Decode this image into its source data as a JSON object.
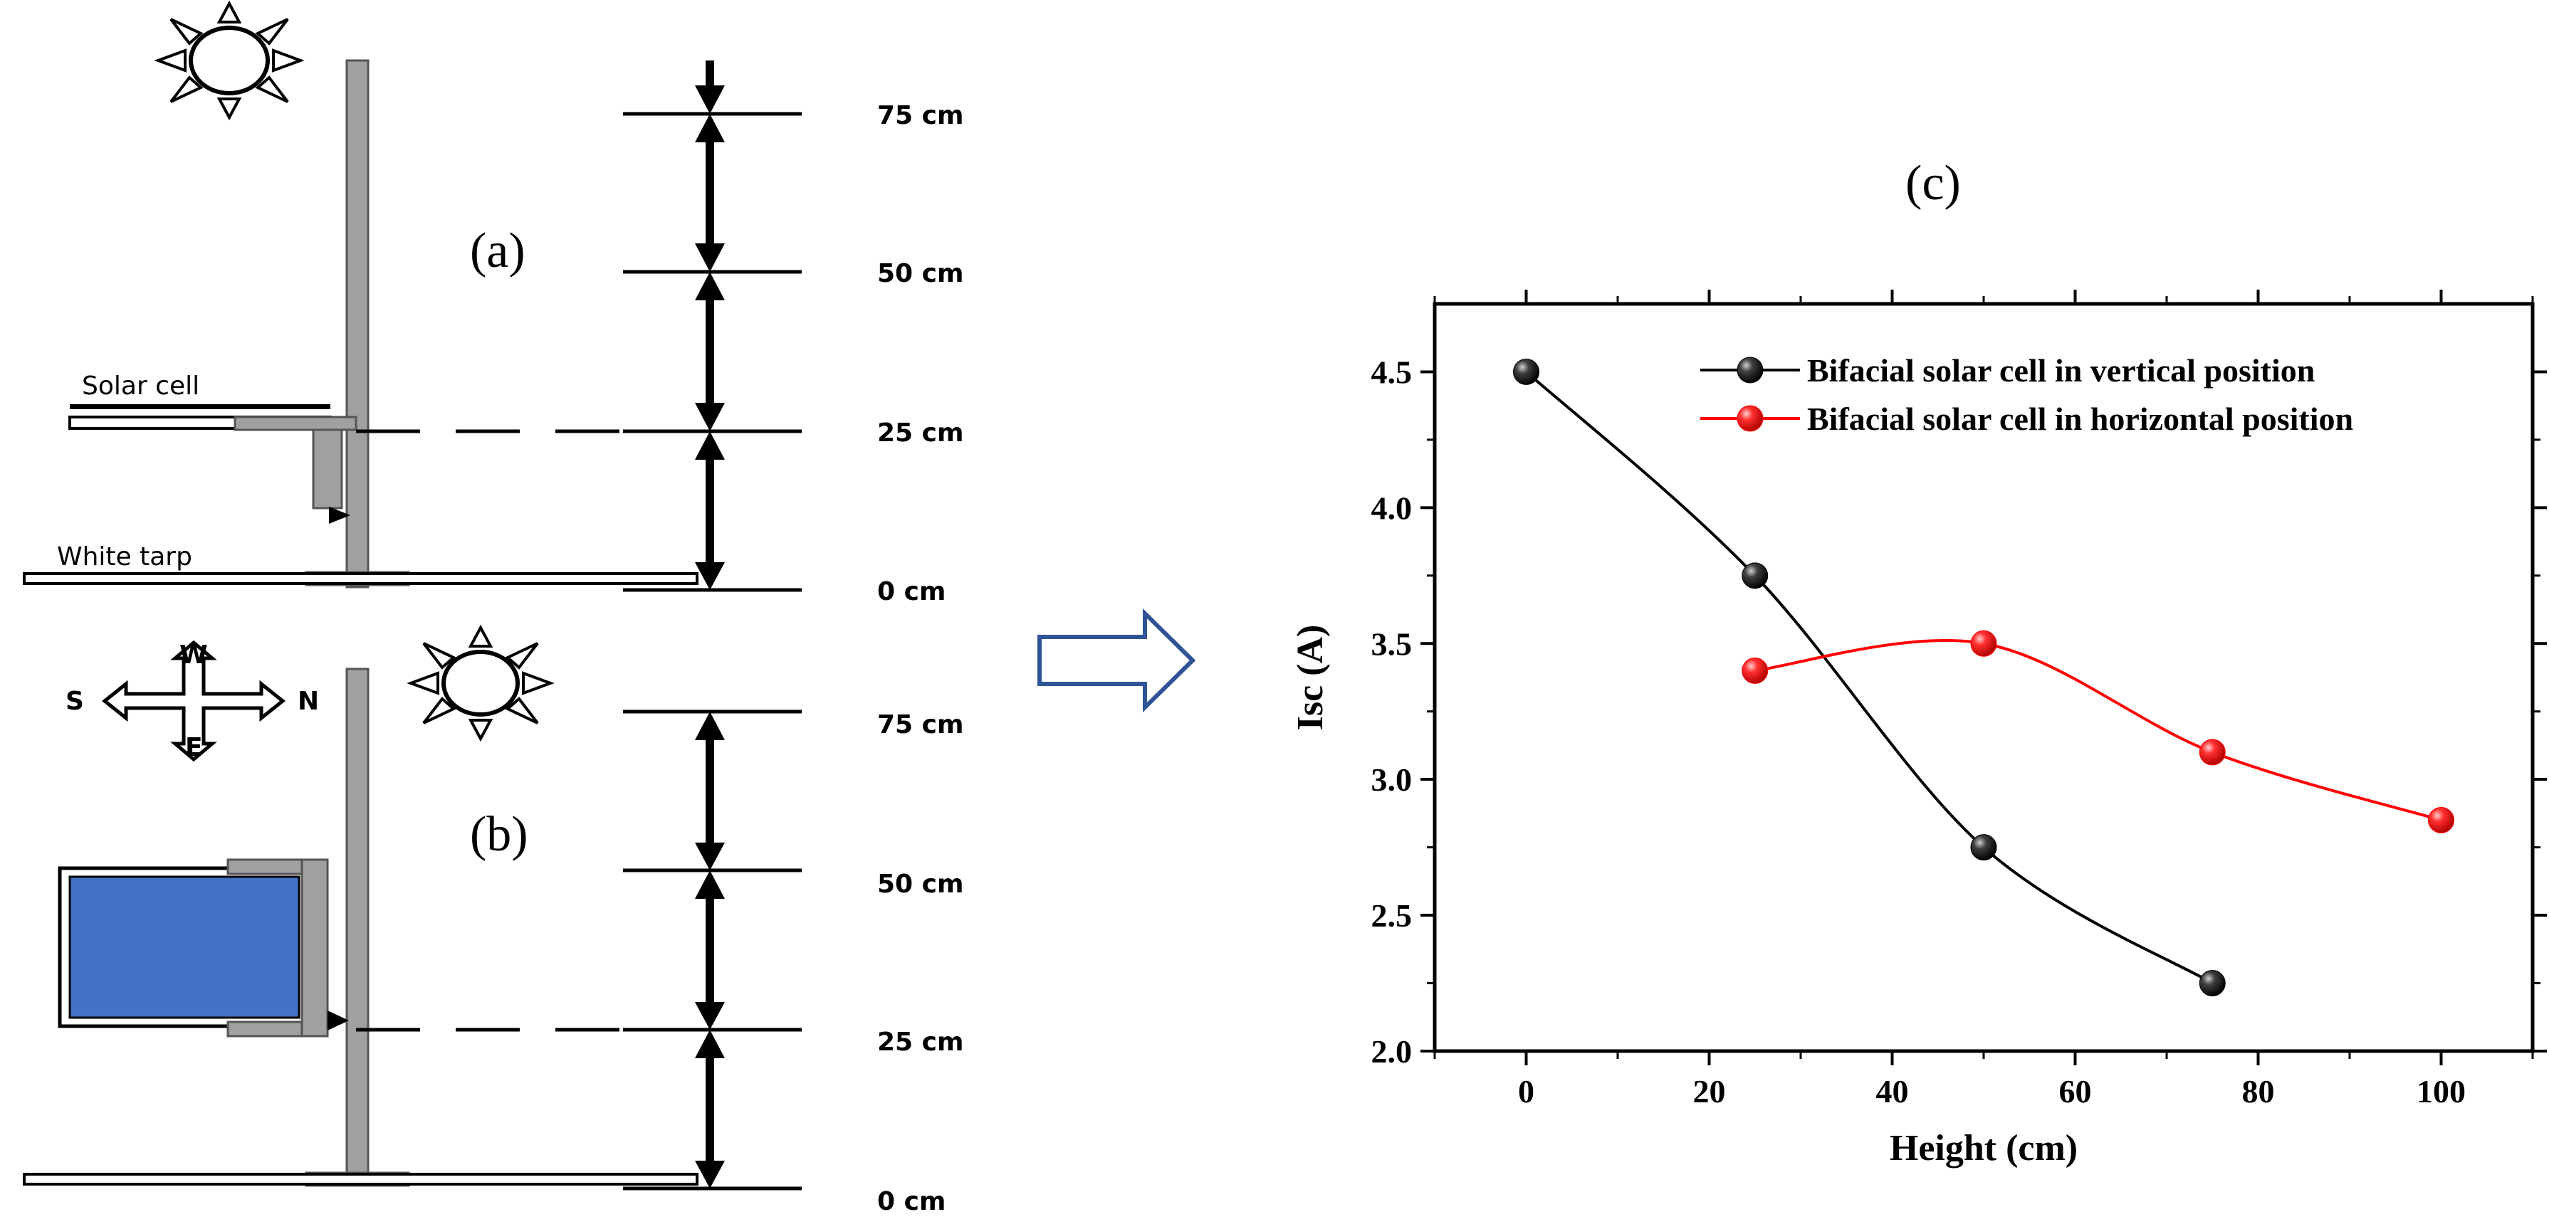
{
  "panel_a": {
    "label": "(a)",
    "solar_cell_label": "Solar cell",
    "tarp_label": "White tarp",
    "height_marks": [
      "75 cm",
      "50 cm",
      "25 cm",
      "0 cm"
    ]
  },
  "panel_b": {
    "label": "(b)",
    "compass": {
      "north": "N",
      "south": "S",
      "east": "E",
      "west": "W"
    },
    "height_marks": [
      "75 cm",
      "50 cm",
      "25 cm",
      "0 cm"
    ]
  },
  "panel_c": {
    "label": "(c)"
  },
  "colors": {
    "vertical_series": "#000000",
    "horizontal_series": "#ff0000",
    "panel_fill": "#4472c4",
    "pole": "#a0a0a0",
    "arrow": "#2f5496"
  },
  "chart_data": {
    "type": "line",
    "xlabel": "Height (cm)",
    "ylabel": "Isc (A)",
    "xlim": [
      -10,
      110
    ],
    "ylim": [
      2.0,
      4.75
    ],
    "xticks": [
      0,
      20,
      40,
      60,
      80,
      100
    ],
    "yticks": [
      2.0,
      2.5,
      3.0,
      3.5,
      4.0,
      4.5
    ],
    "legend_position": "top-right",
    "series": [
      {
        "name": "Bifacial solar cell in vertical position",
        "color": "#000000",
        "x": [
          0,
          25,
          50,
          75
        ],
        "y": [
          4.5,
          3.75,
          2.75,
          2.25
        ]
      },
      {
        "name": "Bifacial solar cell in horizontal position",
        "color": "#ff0000",
        "x": [
          25,
          50,
          75,
          100
        ],
        "y": [
          3.4,
          3.5,
          3.1,
          2.85
        ]
      }
    ]
  }
}
